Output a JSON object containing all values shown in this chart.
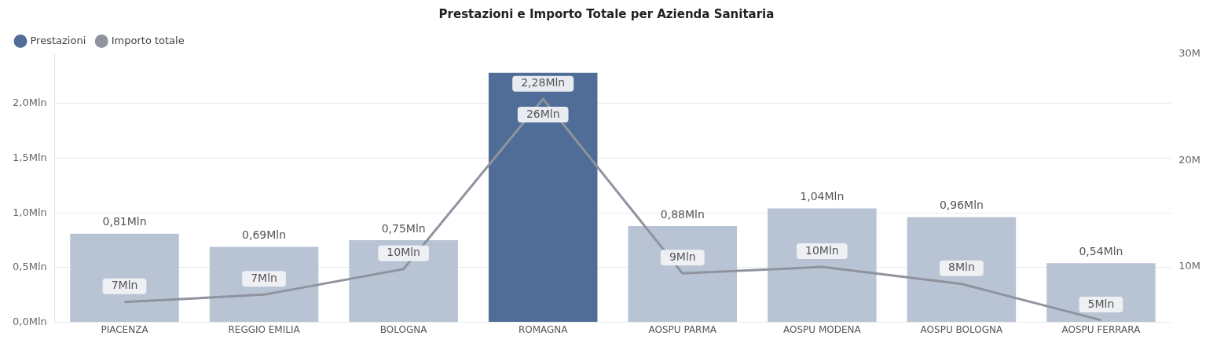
{
  "chart_data": {
    "type": "bar",
    "title": "Prestazioni e Importo Totale per Azienda Sanitaria",
    "categories": [
      "PIACENZA",
      "REGGIO EMILIA",
      "BOLOGNA",
      "ROMAGNA",
      "AOSPU PARMA",
      "AOSPU MODENA",
      "AOSPU BOLOGNA",
      "AOSPU FERRARA"
    ],
    "series": [
      {
        "name": "Prestazioni",
        "color": "#4f6d96",
        "colors": [
          "#b8c3d4",
          "#b8c3d4",
          "#b8c3d4",
          "#4f6d96",
          "#b8c3d4",
          "#b8c3d4",
          "#b8c3d4",
          "#b8c3d4"
        ],
        "values": [
          0.81,
          0.69,
          0.75,
          2.28,
          0.88,
          1.04,
          0.96,
          0.54
        ],
        "value_labels": [
          "0,81Mln",
          "0,69Mln",
          "0,75Mln",
          "2,28Mln",
          "0,88Mln",
          "1,04Mln",
          "0,96Mln",
          "0,54Mln"
        ]
      },
      {
        "name": "Importo totale",
        "type": "line",
        "axis": "y2",
        "color": "#8e939e",
        "values": [
          6.7,
          7.4,
          9.8,
          25.8,
          9.4,
          10.0,
          8.4,
          5.0
        ],
        "value_labels": [
          "7Mln",
          "7Mln",
          "10Mln",
          "26Mln",
          "9Mln",
          "10Mln",
          "8Mln",
          "5Mln"
        ]
      }
    ],
    "ylim": [
      0,
      2.45
    ],
    "yticks": [
      {
        "value": 0,
        "label": "0,0Mln"
      },
      {
        "value": 0.5,
        "label": "0,5Mln"
      },
      {
        "value": 1.0,
        "label": "1,0Mln"
      },
      {
        "value": 1.5,
        "label": "1,5Mln"
      },
      {
        "value": 2.0,
        "label": "2,0Mln"
      }
    ],
    "y2lim": [
      4.8,
      30
    ],
    "y2ticks": [
      {
        "value": 10,
        "label": "10M"
      },
      {
        "value": 20,
        "label": "20M"
      },
      {
        "value": 30,
        "label": "30M"
      }
    ],
    "grid": "y",
    "legend": "top left",
    "marker": "none",
    "line_style": "solid"
  }
}
